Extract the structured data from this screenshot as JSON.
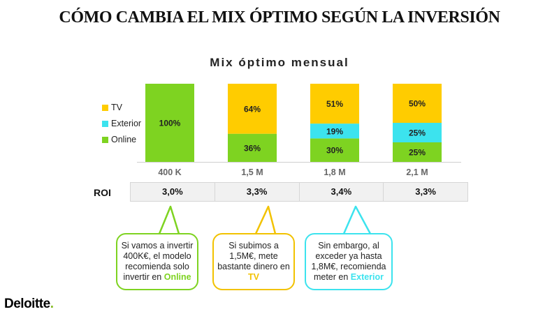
{
  "title": "CÓMO CAMBIA EL MIX ÓPTIMO SEGÚN LA INVERSIÓN",
  "chart_data": {
    "type": "bar",
    "stacked": true,
    "title": "Mix óptimo mensual",
    "categories": [
      "400 K",
      "1,5 M",
      "1,8 M",
      "2,1 M"
    ],
    "series": [
      {
        "name": "Online",
        "color": "#7ed321",
        "values": [
          100,
          36,
          30,
          25
        ],
        "labels": [
          "100%",
          "36%",
          "30%",
          "25%"
        ]
      },
      {
        "name": "Exterior",
        "color": "#3ce3ee",
        "values": [
          0,
          0,
          19,
          25
        ],
        "labels": [
          "",
          "",
          "19%",
          "25%"
        ]
      },
      {
        "name": "TV",
        "color": "#ffcc00",
        "values": [
          0,
          64,
          51,
          50
        ],
        "labels": [
          "",
          "64%",
          "51%",
          "50%"
        ]
      }
    ],
    "legend_order": [
      "TV",
      "Exterior",
      "Online"
    ],
    "legend_position": "left",
    "ylim": [
      0,
      100
    ]
  },
  "roi": {
    "label": "ROI",
    "values": [
      "3,0%",
      "3,3%",
      "3,4%",
      "3,3%"
    ]
  },
  "callouts": [
    {
      "pre": "Si vamos a invertir 400K€, el modelo recomienda solo invertir en ",
      "highlight": "Online",
      "color": "#7ed321"
    },
    {
      "pre": "Si subimos a 1,5M€, mete bastante dinero en ",
      "highlight": "TV",
      "color": "#f2c200"
    },
    {
      "pre": "Sin embargo, al exceder ya hasta 1,8M€, recomienda meter en ",
      "highlight": "Exterior",
      "color": "#3ce3ee"
    }
  ],
  "logo": {
    "text": "Deloitte",
    "dot": "."
  }
}
